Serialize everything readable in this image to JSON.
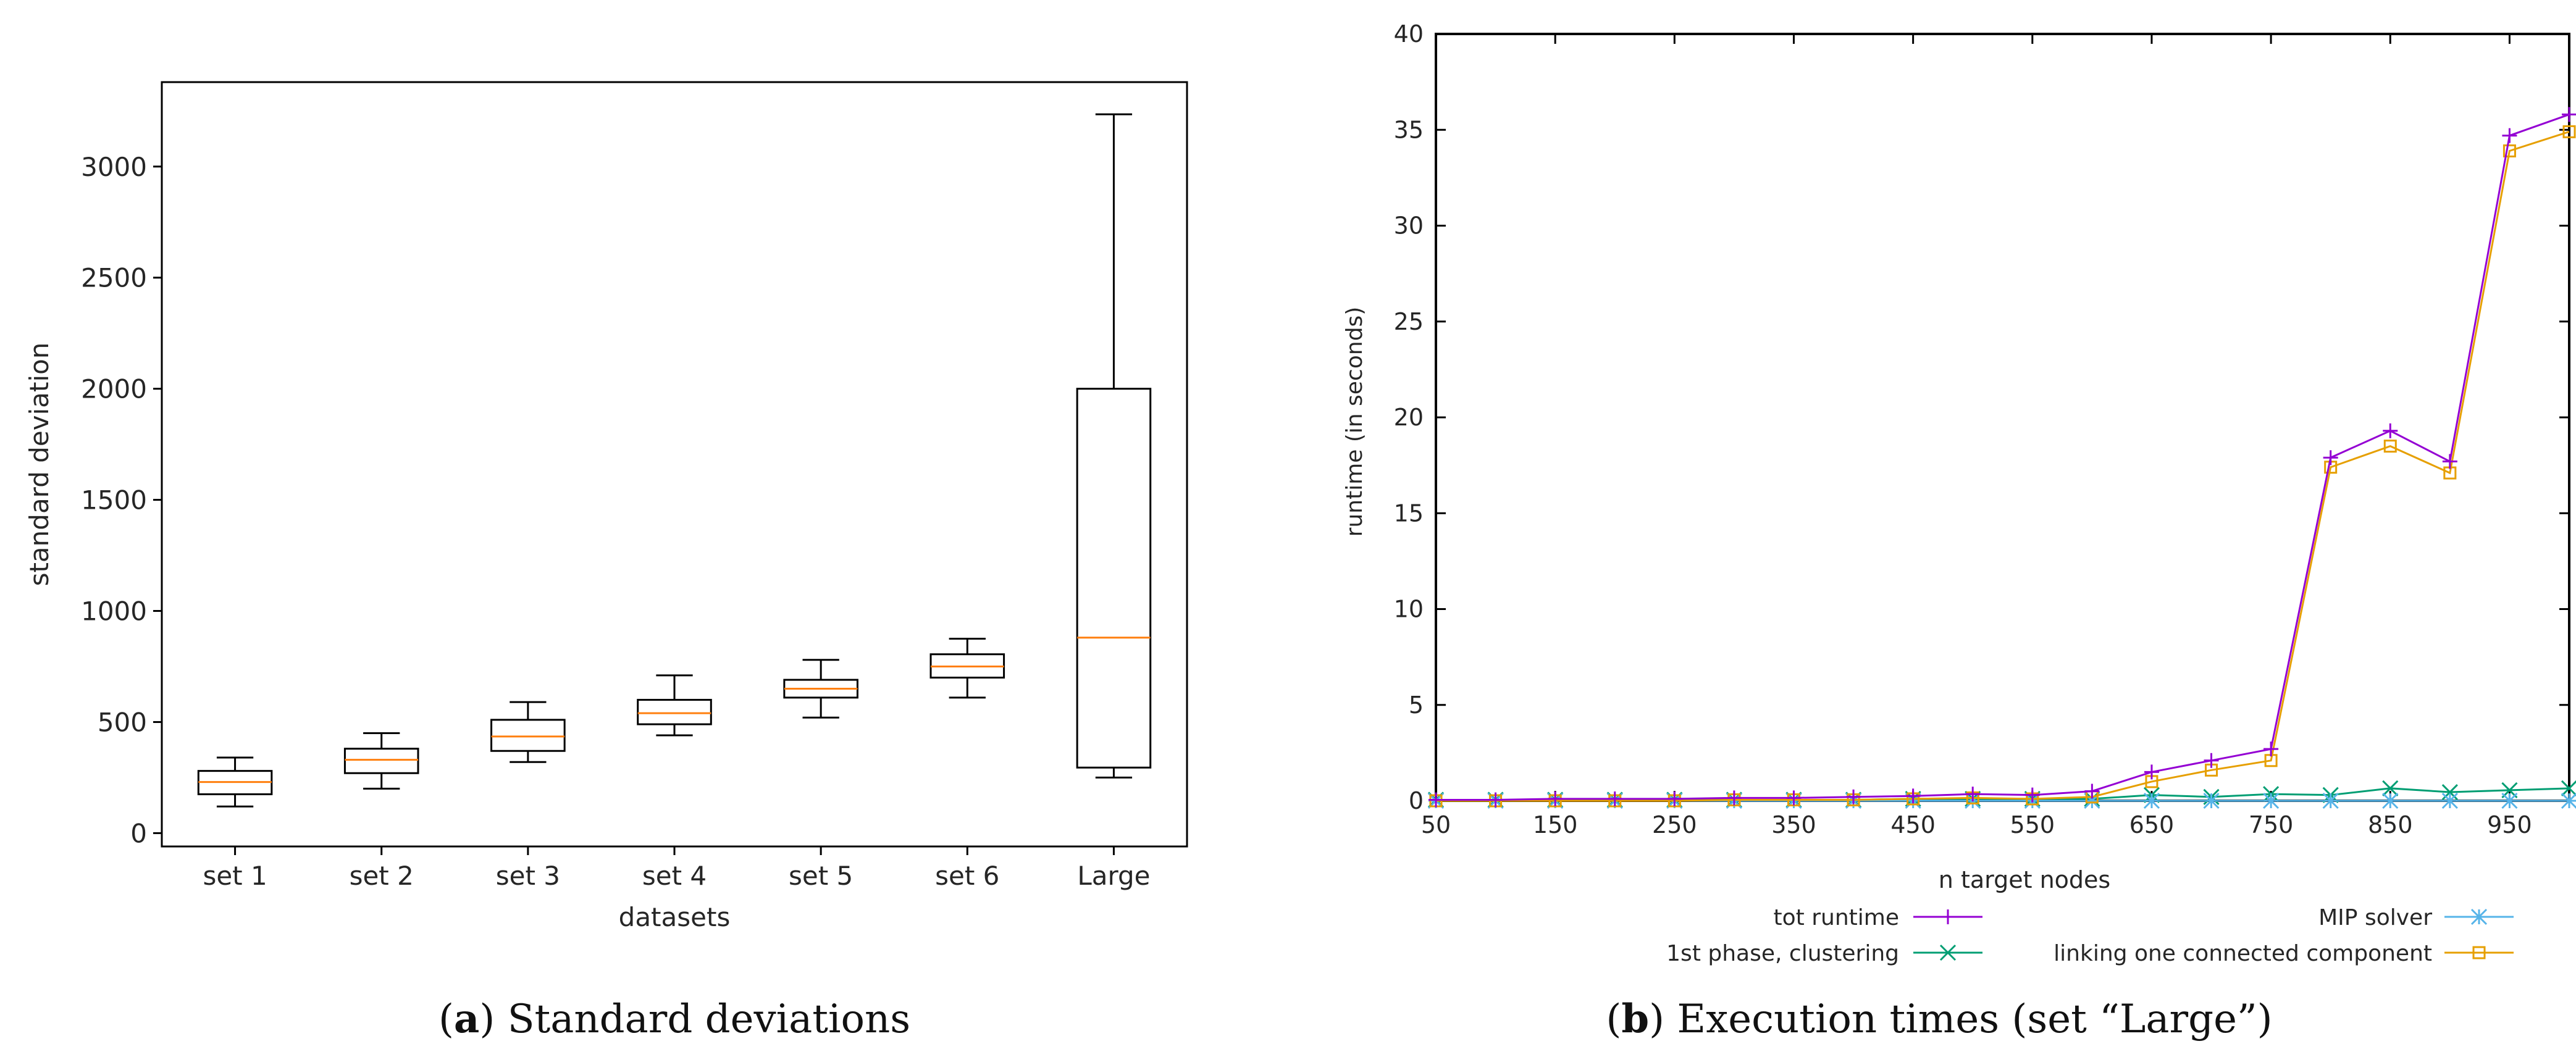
{
  "chart_data": [
    {
      "type": "box",
      "panel_label": "a",
      "caption": "Standard deviations",
      "xlabel": "datasets",
      "ylabel": "standard deviation",
      "ylim": [
        -60,
        3380
      ],
      "yticks": [
        0,
        500,
        1000,
        1500,
        2000,
        2500,
        3000
      ],
      "categories": [
        "set 1",
        "set 2",
        "set 3",
        "set 4",
        "set 5",
        "set 6",
        "Large"
      ],
      "boxes": [
        {
          "whisker_low": 120,
          "q1": 175,
          "median": 230,
          "q3": 280,
          "whisker_high": 340
        },
        {
          "whisker_low": 200,
          "q1": 270,
          "median": 330,
          "q3": 380,
          "whisker_high": 450
        },
        {
          "whisker_low": 320,
          "q1": 370,
          "median": 435,
          "q3": 510,
          "whisker_high": 590
        },
        {
          "whisker_low": 440,
          "q1": 490,
          "median": 540,
          "q3": 600,
          "whisker_high": 710
        },
        {
          "whisker_low": 520,
          "q1": 610,
          "median": 650,
          "q3": 690,
          "whisker_high": 780
        },
        {
          "whisker_low": 610,
          "q1": 700,
          "median": 750,
          "q3": 805,
          "whisker_high": 875
        },
        {
          "whisker_low": 250,
          "q1": 295,
          "median": 880,
          "q3": 2000,
          "whisker_high": 3235
        }
      ],
      "colors": {
        "box": "#000000",
        "median": "#ff7f0e"
      }
    },
    {
      "type": "line",
      "panel_label": "b",
      "caption": "Execution times (set “Large”)",
      "xlabel": "n target nodes",
      "ylabel": "runtime (in seconds)",
      "xlim": [
        50,
        1000
      ],
      "ylim": [
        0,
        40
      ],
      "xticks": [
        50,
        150,
        250,
        350,
        450,
        550,
        650,
        750,
        850,
        950
      ],
      "yticks": [
        0,
        5,
        10,
        15,
        20,
        25,
        30,
        35,
        40
      ],
      "x": [
        50,
        100,
        150,
        200,
        250,
        300,
        350,
        400,
        450,
        500,
        550,
        600,
        650,
        700,
        750,
        800,
        850,
        900,
        950,
        1000
      ],
      "series": [
        {
          "name": "tot runtime",
          "marker": "plus",
          "color": "#9400d3",
          "values": [
            0.05,
            0.05,
            0.1,
            0.1,
            0.1,
            0.15,
            0.15,
            0.2,
            0.25,
            0.35,
            0.3,
            0.5,
            1.5,
            2.1,
            2.7,
            17.9,
            19.3,
            17.7,
            34.7,
            35.8
          ]
        },
        {
          "name": "MIP solver",
          "marker": "star",
          "color": "#56b4e9",
          "values": [
            0.0,
            0.0,
            0.0,
            0.0,
            0.0,
            0.0,
            0.0,
            0.0,
            0.0,
            0.0,
            0.0,
            0.0,
            0.0,
            0.0,
            0.0,
            0.0,
            0.0,
            0.0,
            0.0,
            0.0
          ]
        },
        {
          "name": "1st phase, clustering",
          "marker": "cross",
          "color": "#009e73",
          "values": [
            0.05,
            0.05,
            0.05,
            0.05,
            0.05,
            0.05,
            0.05,
            0.05,
            0.1,
            0.1,
            0.1,
            0.1,
            0.3,
            0.2,
            0.35,
            0.3,
            0.65,
            0.45,
            0.55,
            0.65
          ]
        },
        {
          "name": "linking one connected component",
          "marker": "square",
          "color": "#e69f00",
          "values": [
            0.0,
            0.0,
            0.0,
            0.0,
            0.0,
            0.05,
            0.05,
            0.05,
            0.1,
            0.15,
            0.1,
            0.2,
            1.0,
            1.6,
            2.1,
            17.4,
            18.5,
            17.1,
            33.9,
            34.9
          ]
        }
      ]
    }
  ]
}
